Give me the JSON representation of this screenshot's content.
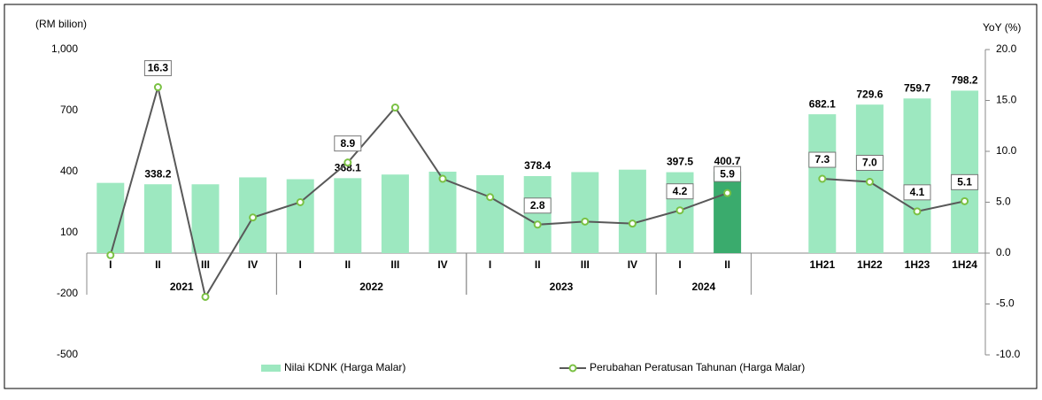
{
  "chart_data": {
    "type": "bar-line",
    "y_label": "(RM bilion)",
    "y2_label": "YoY (%)",
    "groups": [
      {
        "name": "2021",
        "categories": [
          "I",
          "II",
          "III",
          "IV"
        ]
      },
      {
        "name": "2022",
        "categories": [
          "I",
          "II",
          "III",
          "IV"
        ]
      },
      {
        "name": "2023",
        "categories": [
          "I",
          "II",
          "III",
          "IV"
        ]
      },
      {
        "name": "2024",
        "categories": [
          "I",
          "II"
        ]
      },
      {
        "categories": [
          "1H21",
          "1H22",
          "1H23",
          "1H24"
        ]
      }
    ],
    "series": [
      {
        "name": "Nilai KDNK (Harga Malar)",
        "type": "bar",
        "colors": [
          "#9de8c0",
          "#9de8c0",
          "#9de8c0",
          "#9de8c0",
          "#9de8c0",
          "#9de8c0",
          "#9de8c0",
          "#9de8c0",
          "#9de8c0",
          "#9de8c0",
          "#9de8c0",
          "#9de8c0",
          "#9de8c0",
          "#3aab6d",
          "#9de8c0",
          "#9de8c0",
          "#9de8c0",
          "#9de8c0"
        ],
        "values": [
          345,
          338.2,
          338,
          372,
          363,
          368.1,
          386,
          400,
          383,
          378.4,
          398,
          410,
          397.5,
          400.7,
          682.1,
          729.6,
          759.7,
          798.2
        ],
        "value_labels": [
          null,
          "338.2",
          null,
          null,
          null,
          "368.1",
          null,
          null,
          null,
          "378.4",
          null,
          null,
          "397.5",
          "400.7",
          "682.1",
          "729.6",
          "759.7",
          "798.2"
        ]
      },
      {
        "name": "Perubahan Peratusan Tahunan (Harga Malar)",
        "type": "line",
        "axis": "y2",
        "color": "#595959",
        "marker_color": "#7ac143",
        "values": [
          -0.2,
          16.3,
          -4.3,
          3.5,
          5.0,
          8.9,
          14.3,
          7.3,
          5.5,
          2.8,
          3.1,
          2.9,
          4.2,
          5.9,
          7.3,
          7.0,
          4.1,
          5.1
        ],
        "value_labels": [
          null,
          "16.3",
          null,
          null,
          null,
          "8.9",
          null,
          null,
          null,
          "2.8",
          null,
          null,
          "4.2",
          "5.9",
          "7.3",
          "7.0",
          "4.1",
          "5.1"
        ]
      }
    ],
    "ylim": [
      -500,
      1000
    ],
    "yticks": [
      -500,
      -200,
      100,
      400,
      700,
      {
        "value": 1000,
        "label": "1,000"
      }
    ],
    "y2lim": [
      -10,
      20
    ],
    "y2ticks": [
      {
        "value": -10,
        "label": "-10.0"
      },
      {
        "value": -5,
        "label": "-5.0"
      },
      {
        "value": 0,
        "label": "0.0"
      },
      {
        "value": 5,
        "label": "5.0"
      },
      {
        "value": 10,
        "label": "10.0"
      },
      {
        "value": 15,
        "label": "15.0"
      },
      {
        "value": 20,
        "label": "20.0"
      }
    ]
  }
}
